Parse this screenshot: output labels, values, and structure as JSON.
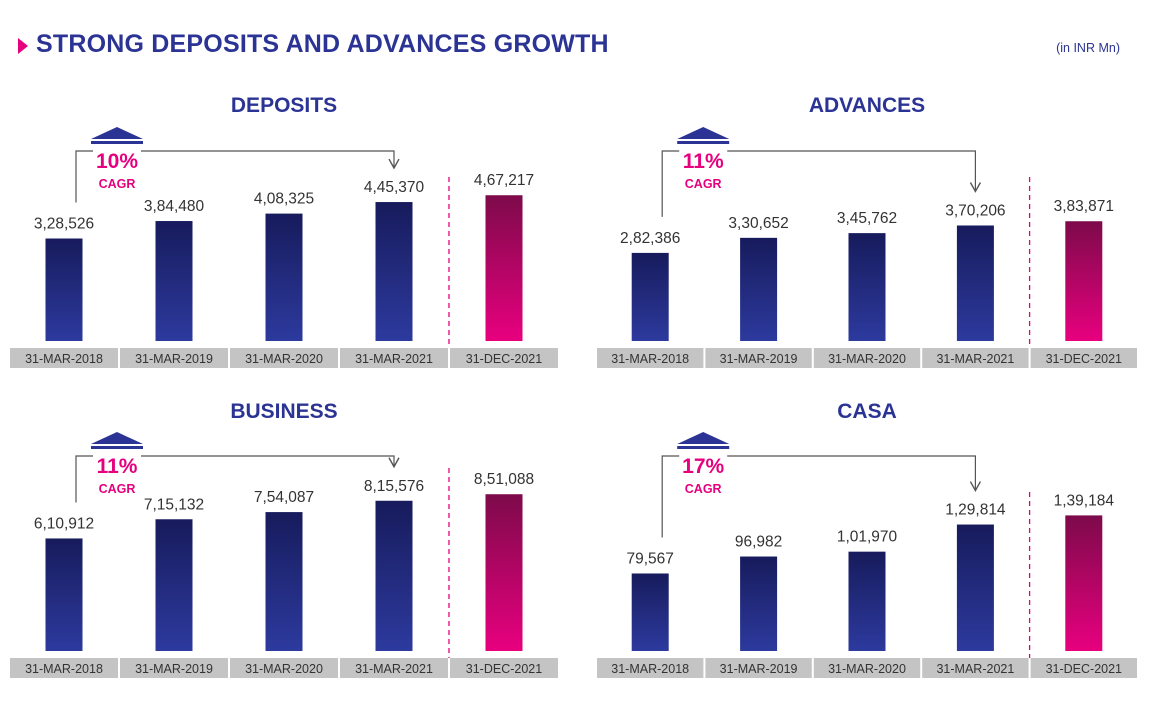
{
  "header": {
    "title": "STRONG DEPOSITS AND ADVANCES GROWTH",
    "unit": "(in INR Mn)",
    "accent_color": "#e6007e",
    "title_color": "#2b3494"
  },
  "colors": {
    "bar_navy_top": "#171b5c",
    "bar_navy_bottom": "#2d3a9e",
    "bar_magenta_top": "#7d0a4a",
    "bar_magenta_bottom": "#e8007f",
    "axis_strip": "#c4c4c4",
    "divider": "#e6007e",
    "arrow": "#555555"
  },
  "chart_data": [
    {
      "type": "bar",
      "title": "DEPOSITS",
      "categories": [
        "31-MAR-2018",
        "31-MAR-2019",
        "31-MAR-2020",
        "31-MAR-2021",
        "31-DEC-2021"
      ],
      "values": [
        328526,
        384480,
        408325,
        445370,
        467217
      ],
      "value_labels": [
        "3,28,526",
        "3,84,480",
        "4,08,325",
        "4,45,370",
        "4,67,217"
      ],
      "ylim": [
        0,
        500000
      ],
      "cagr": {
        "value": "10%",
        "label": "CAGR"
      },
      "grid": false
    },
    {
      "type": "bar",
      "title": "ADVANCES",
      "categories": [
        "31-MAR-2018",
        "31-MAR-2019",
        "31-MAR-2020",
        "31-MAR-2021",
        "31-DEC-2021"
      ],
      "values": [
        282386,
        330652,
        345762,
        370206,
        383871
      ],
      "value_labels": [
        "2,82,386",
        "3,30,652",
        "3,45,762",
        "3,70,206",
        "3,83,871"
      ],
      "ylim": [
        0,
        500000
      ],
      "cagr": {
        "value": "11%",
        "label": "CAGR"
      },
      "grid": false
    },
    {
      "type": "bar",
      "title": "BUSINESS",
      "categories": [
        "31-MAR-2018",
        "31-MAR-2019",
        "31-MAR-2020",
        "31-MAR-2021",
        "31-DEC-2021"
      ],
      "values": [
        610912,
        715132,
        754087,
        815576,
        851088
      ],
      "value_labels": [
        "6,10,912",
        "7,15,132",
        "7,54,087",
        "8,15,576",
        "8,51,088"
      ],
      "ylim": [
        0,
        950000
      ],
      "cagr": {
        "value": "11%",
        "label": "CAGR"
      },
      "grid": false
    },
    {
      "type": "bar",
      "title": "CASA",
      "categories": [
        "31-MAR-2018",
        "31-MAR-2019",
        "31-MAR-2020",
        "31-MAR-2021",
        "31-DEC-2021"
      ],
      "values": [
        79567,
        96982,
        101970,
        129814,
        139184
      ],
      "value_labels": [
        "79,567",
        "96,982",
        "1,01,970",
        "1,29,814",
        "1,39,184"
      ],
      "ylim": [
        0,
        155000
      ],
      "cagr": {
        "value": "17%",
        "label": "CAGR"
      },
      "grid": false
    }
  ]
}
